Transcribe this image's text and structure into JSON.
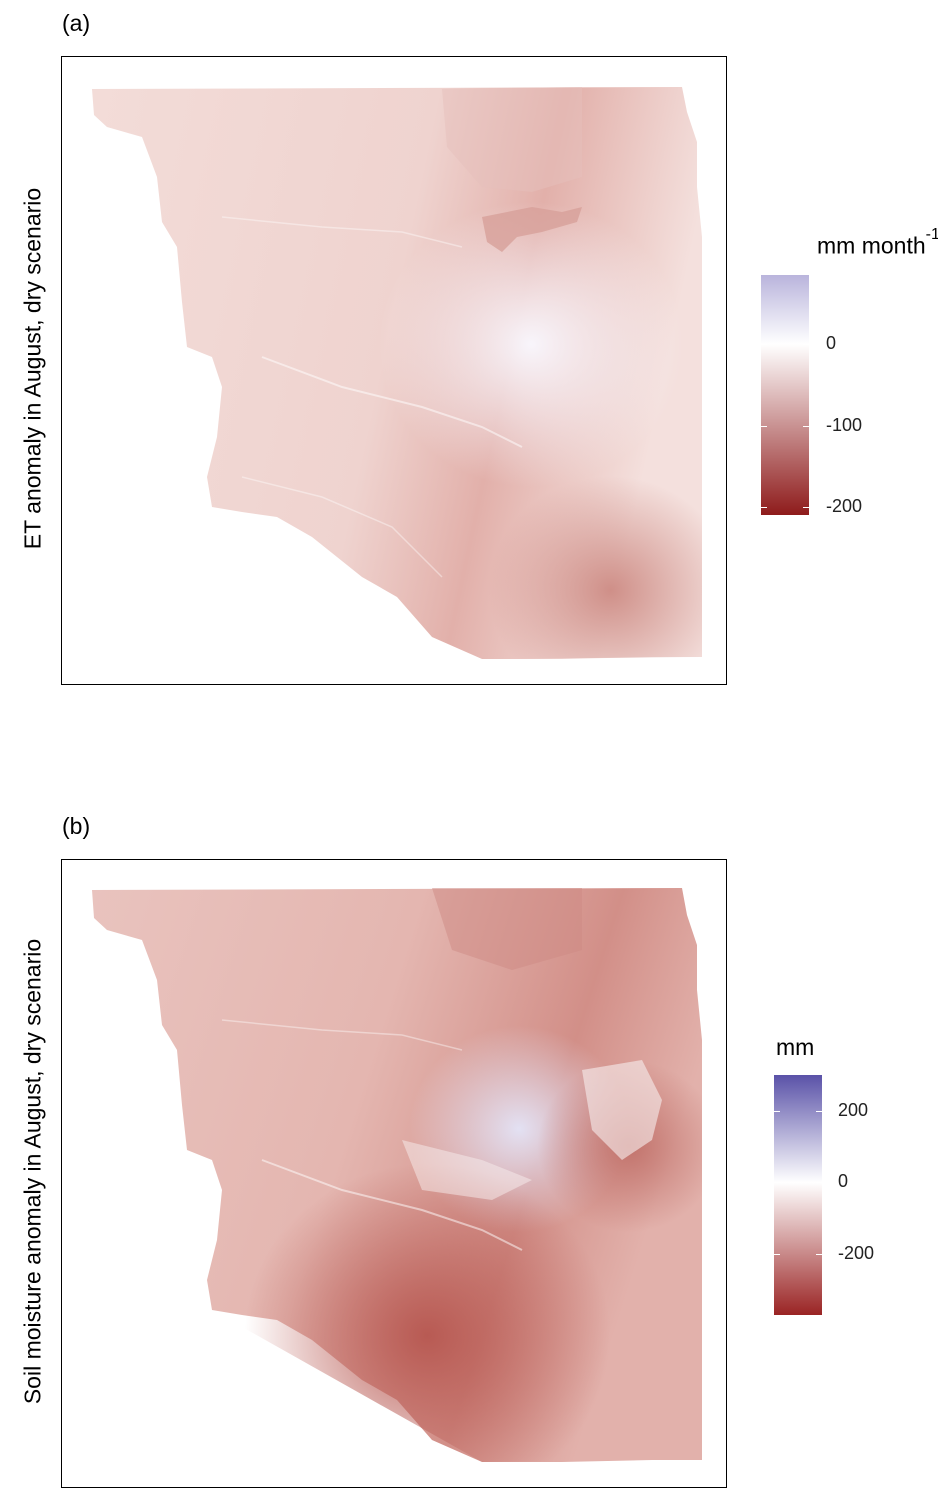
{
  "panels": [
    {
      "tag": "(a)",
      "ylabel": "ET anomaly in August, dry scenario",
      "legend": {
        "title": "mm month",
        "title_sup": "-1",
        "ticks": [
          {
            "value": 0,
            "label": "0"
          },
          {
            "value": -100,
            "label": "-100"
          },
          {
            "value": -200,
            "label": "-200"
          }
        ],
        "range": [
          -210,
          85
        ],
        "colors": {
          "low": "#8e1b1b",
          "mid": "#ffffff",
          "high": "#b9b4dc"
        }
      }
    },
    {
      "tag": "(b)",
      "ylabel": "Soil moisture anomaly in August, dry scenario",
      "legend": {
        "title": "mm",
        "title_sup": "",
        "ticks": [
          {
            "value": 200,
            "label": "200"
          },
          {
            "value": 0,
            "label": "0"
          },
          {
            "value": -200,
            "label": "-200"
          }
        ],
        "range": [
          -370,
          300
        ],
        "colors": {
          "low": "#9a2424",
          "mid": "#ffffff",
          "high": "#5a52a8"
        }
      }
    }
  ]
}
